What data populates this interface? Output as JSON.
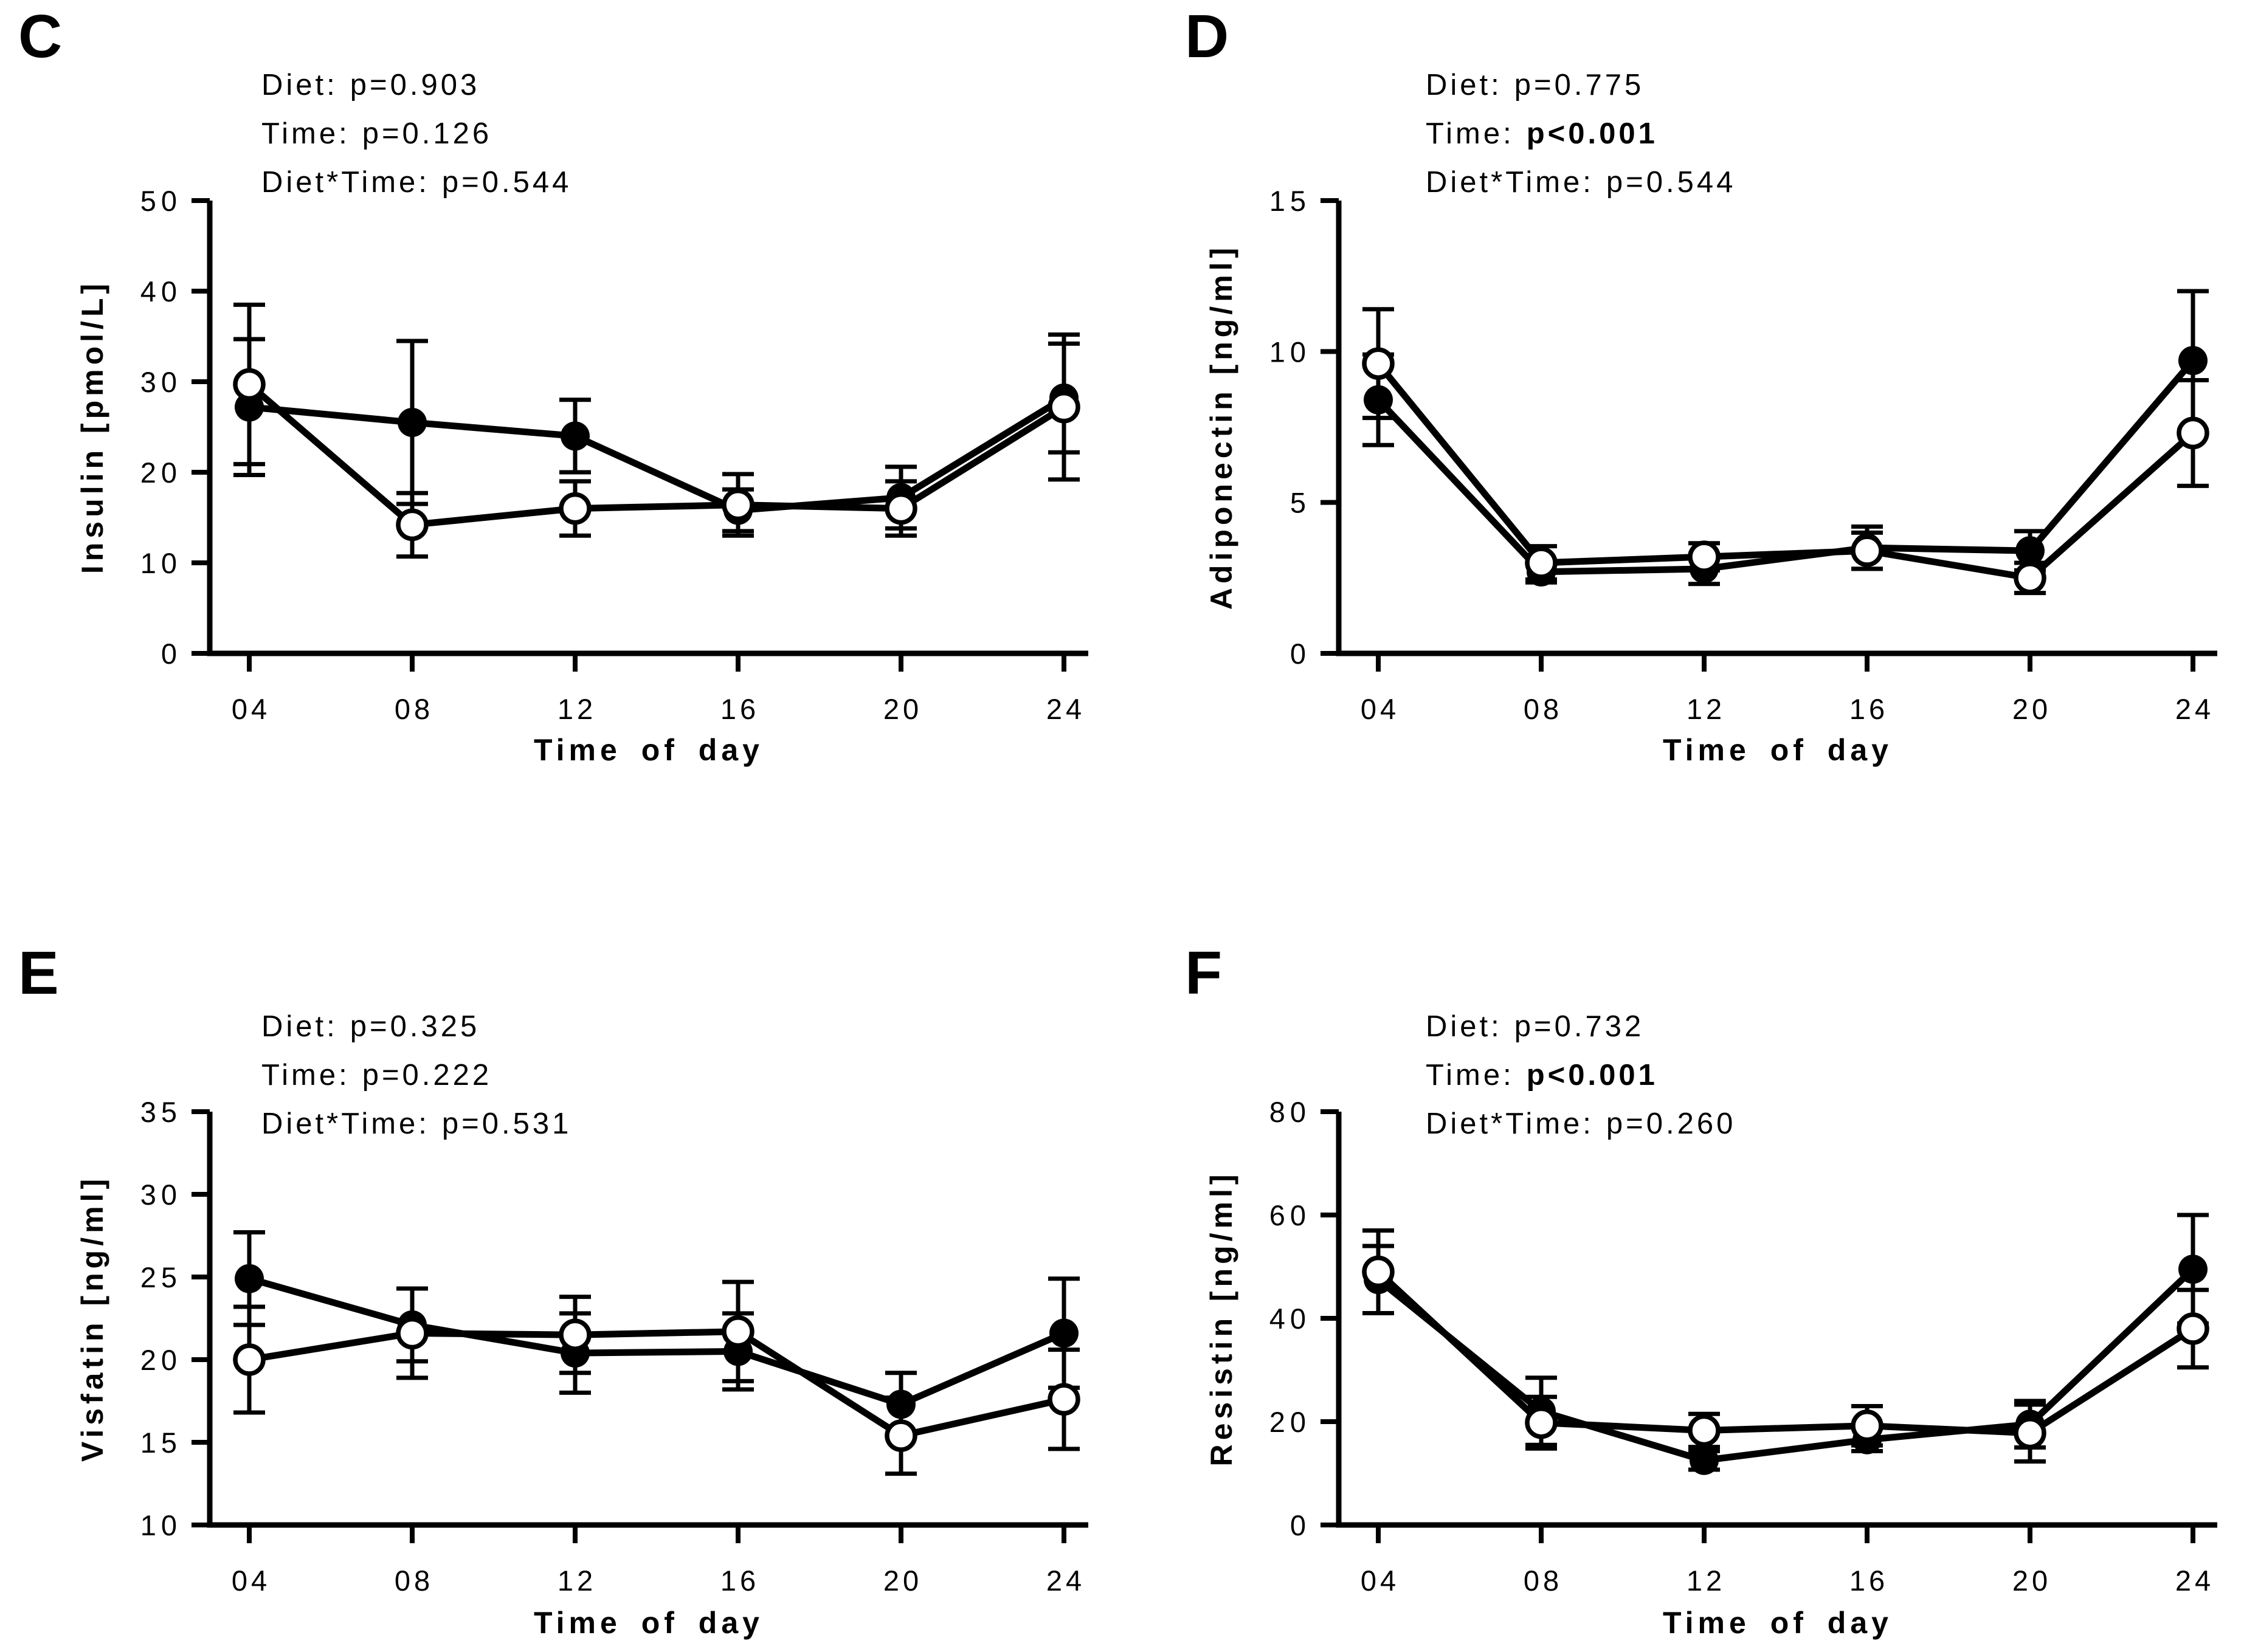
{
  "figure": {
    "background": "#ffffff",
    "ink": "#000000",
    "open_marker_fill": "#ffffff"
  },
  "chart_data": [
    {
      "type": "line",
      "panel_letter": "C",
      "ylabel": "Insulin [pmol/L]",
      "xlabel": "Time of day",
      "x_categories": [
        "04",
        "08",
        "12",
        "16",
        "20",
        "24"
      ],
      "ylim": [
        0,
        50
      ],
      "yticks": [
        0,
        10,
        20,
        30,
        40,
        50
      ],
      "grid": false,
      "legend": "none",
      "stats": [
        {
          "label": "Diet:",
          "value": "p=0.903",
          "bold": false
        },
        {
          "label": "Time:",
          "value": "p=0.126",
          "bold": false
        },
        {
          "label": "Diet*Time:",
          "value": "p=0.544",
          "bold": false
        }
      ],
      "series": [
        {
          "name": "filled-circle",
          "marker": "filled-black-circle",
          "values": [
            27.2,
            25.5,
            24.0,
            15.8,
            17.2,
            28.2
          ],
          "errors": [
            7.5,
            9.0,
            4.0,
            2.3,
            3.4,
            6.0
          ]
        },
        {
          "name": "open-circle",
          "marker": "open-white-circle",
          "values": [
            29.7,
            14.2,
            16.0,
            16.4,
            16.0,
            27.2
          ],
          "errors": [
            8.8,
            3.5,
            3.0,
            3.4,
            3.0,
            8.0
          ]
        }
      ]
    },
    {
      "type": "line",
      "panel_letter": "D",
      "ylabel": "Adiponectin [ng/ml]",
      "xlabel": "Time of day",
      "x_categories": [
        "04",
        "08",
        "12",
        "16",
        "20",
        "24"
      ],
      "ylim": [
        0,
        15
      ],
      "yticks": [
        0,
        5,
        10,
        15
      ],
      "grid": false,
      "legend": "none",
      "stats": [
        {
          "label": "Diet:",
          "value": "p=0.775",
          "bold": false
        },
        {
          "label": "Time:",
          "value": "p<0.001",
          "bold": true
        },
        {
          "label": "Diet*Time:",
          "value": "p=0.544",
          "bold": false
        }
      ],
      "series": [
        {
          "name": "filled-circle",
          "marker": "filled-black-circle",
          "values": [
            8.4,
            2.7,
            2.8,
            3.5,
            3.4,
            9.7
          ],
          "errors": [
            1.5,
            0.35,
            0.5,
            0.7,
            0.65,
            2.3
          ]
        },
        {
          "name": "open-circle",
          "marker": "open-white-circle",
          "values": [
            9.6,
            3.0,
            3.2,
            3.4,
            2.5,
            7.3
          ],
          "errors": [
            1.8,
            0.55,
            0.45,
            0.6,
            0.5,
            1.75
          ]
        }
      ]
    },
    {
      "type": "line",
      "panel_letter": "E",
      "ylabel": "Visfatin [ng/ml]",
      "xlabel": "Time of day",
      "x_categories": [
        "04",
        "08",
        "12",
        "16",
        "20",
        "24"
      ],
      "ylim": [
        10,
        35
      ],
      "yticks": [
        10,
        15,
        20,
        25,
        30,
        35
      ],
      "grid": false,
      "legend": "none",
      "stats": [
        {
          "label": "Diet:",
          "value": "p=0.325",
          "bold": false
        },
        {
          "label": "Time:",
          "value": "p=0.222",
          "bold": false
        },
        {
          "label": "Diet*Time:",
          "value": "p=0.531",
          "bold": false
        }
      ],
      "series": [
        {
          "name": "filled-circle",
          "marker": "filled-black-circle",
          "values": [
            24.9,
            22.1,
            20.4,
            20.5,
            17.3,
            21.6
          ],
          "errors": [
            2.8,
            2.2,
            2.4,
            2.3,
            1.9,
            3.3
          ]
        },
        {
          "name": "open-circle",
          "marker": "open-white-circle",
          "values": [
            20.0,
            21.6,
            21.5,
            21.7,
            15.4,
            17.6
          ],
          "errors": [
            3.2,
            2.7,
            2.3,
            3.0,
            2.3,
            3.0
          ]
        }
      ]
    },
    {
      "type": "line",
      "panel_letter": "F",
      "ylabel": "Resistin [ng/ml]",
      "xlabel": "Time of day",
      "x_categories": [
        "04",
        "08",
        "12",
        "16",
        "20",
        "24"
      ],
      "ylim": [
        0,
        80
      ],
      "yticks": [
        0,
        20,
        40,
        60,
        80
      ],
      "grid": false,
      "legend": "none",
      "stats": [
        {
          "label": "Diet:",
          "value": "p=0.732",
          "bold": false
        },
        {
          "label": "Time:",
          "value": "p<0.001",
          "bold": true
        },
        {
          "label": "Diet*Time:",
          "value": "p=0.260",
          "bold": false
        }
      ],
      "series": [
        {
          "name": "filled-circle",
          "marker": "filled-black-circle",
          "values": [
            47.5,
            22.0,
            12.5,
            16.5,
            19.5,
            49.5
          ],
          "errors": [
            6.5,
            6.5,
            1.8,
            2.2,
            4.5,
            10.5
          ]
        },
        {
          "name": "open-circle",
          "marker": "open-white-circle",
          "values": [
            49.0,
            19.8,
            18.3,
            19.2,
            17.8,
            38.0
          ],
          "errors": [
            8.0,
            5.0,
            3.2,
            3.8,
            5.5,
            7.5
          ]
        }
      ]
    }
  ]
}
